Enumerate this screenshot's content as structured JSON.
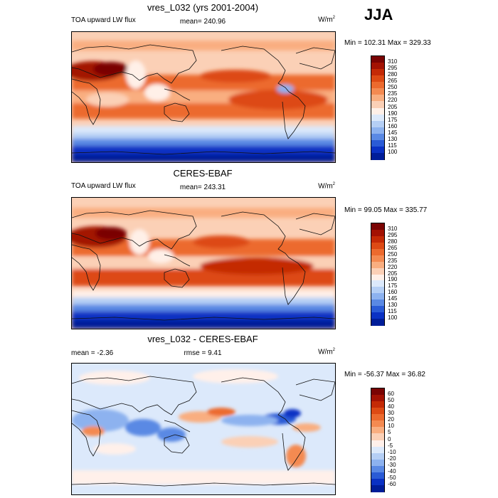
{
  "season": "JJA",
  "panels": [
    {
      "title": "vres_L032 (yrs 2001-2004)",
      "left_label": "TOA upward LW flux",
      "center_label": "mean= 240.96",
      "units_base": "W/m",
      "units_exp": "2",
      "minmax": "Min = 102.31 Max = 329.33"
    },
    {
      "title": "CERES-EBAF",
      "left_label": "TOA upward LW flux",
      "center_label": "mean= 243.31",
      "units_base": "W/m",
      "units_exp": "2",
      "minmax": "Min =  99.05 Max = 335.77"
    },
    {
      "title": "vres_L032 - CERES-EBAF",
      "left_label": "mean =  -2.36",
      "center_label": "rmse =  9.41",
      "units_base": "W/m",
      "units_exp": "2",
      "minmax": "Min = -56.37 Max =  36.82"
    }
  ],
  "colorbar_abs": {
    "labels": [
      "310",
      "295",
      "280",
      "265",
      "250",
      "235",
      "220",
      "205",
      "190",
      "175",
      "160",
      "145",
      "130",
      "115",
      "100"
    ],
    "colors": [
      "#7a0403",
      "#a31203",
      "#c42a06",
      "#dd4a14",
      "#ec6a2e",
      "#f48a51",
      "#f9ae80",
      "#fbd0b6",
      "#fff0e8",
      "#dce9fb",
      "#b5cff5",
      "#8db2ef",
      "#5a89e4",
      "#2a5bd6",
      "#0a31c4",
      "#001d99"
    ]
  },
  "colorbar_diff": {
    "labels": [
      "60",
      "50",
      "40",
      "30",
      "20",
      "10",
      "5",
      "0",
      "-5",
      "-10",
      "-20",
      "-30",
      "-40",
      "-50",
      "-60"
    ],
    "colors": [
      "#7a0403",
      "#a31203",
      "#c42a06",
      "#dd4a14",
      "#ec6a2e",
      "#f48a51",
      "#f9ae80",
      "#fbd0b6",
      "#fff0ea",
      "#dce9fb",
      "#b5cff5",
      "#8db2ef",
      "#5a89e4",
      "#2a5bd6",
      "#0a31c4",
      "#001d99"
    ]
  },
  "chart_data": [
    {
      "type": "heatmap",
      "title": "vres_L032 (yrs 2001-2004)",
      "variable": "TOA upward LW flux",
      "units": "W/m2",
      "mean": 240.96,
      "min": 102.31,
      "max": 329.33,
      "contour_levels": [
        100,
        115,
        130,
        145,
        160,
        175,
        190,
        205,
        220,
        235,
        250,
        265,
        280,
        295,
        310
      ],
      "projection": "cylindrical equidistant, 0-360 lon, -90 to 90 lat"
    },
    {
      "type": "heatmap",
      "title": "CERES-EBAF",
      "variable": "TOA upward LW flux",
      "units": "W/m2",
      "mean": 243.31,
      "min": 99.05,
      "max": 335.77,
      "contour_levels": [
        100,
        115,
        130,
        145,
        160,
        175,
        190,
        205,
        220,
        235,
        250,
        265,
        280,
        295,
        310
      ]
    },
    {
      "type": "heatmap",
      "title": "vres_L032 - CERES-EBAF",
      "units": "W/m2",
      "mean": -2.36,
      "rmse": 9.41,
      "min": -56.37,
      "max": 36.82,
      "contour_levels": [
        -60,
        -50,
        -40,
        -30,
        -20,
        -10,
        -5,
        0,
        5,
        10,
        20,
        30,
        40,
        50,
        60
      ]
    }
  ]
}
